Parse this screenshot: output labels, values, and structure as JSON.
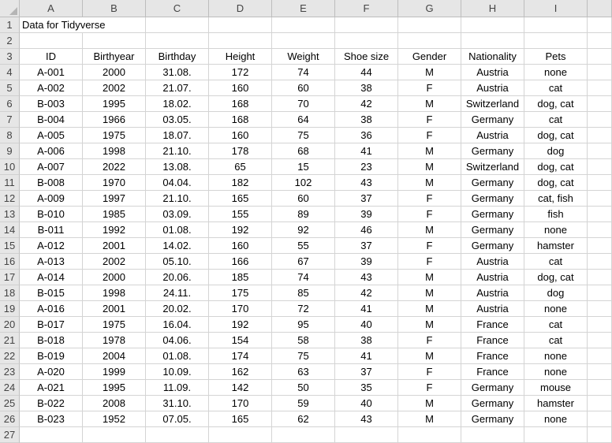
{
  "columns": [
    "A",
    "B",
    "C",
    "D",
    "E",
    "F",
    "G",
    "H",
    "I"
  ],
  "title_cell": "Data for Tidyverse",
  "headers": [
    "ID",
    "Birthyear",
    "Birthday",
    "Height",
    "Weight",
    "Shoe size",
    "Gender",
    "Nationality",
    "Pets"
  ],
  "rows": [
    [
      "A-001",
      "2000",
      "31.08.",
      "172",
      "74",
      "44",
      "M",
      "Austria",
      "none"
    ],
    [
      "A-002",
      "2002",
      "21.07.",
      "160",
      "60",
      "38",
      "F",
      "Austria",
      "cat"
    ],
    [
      "B-003",
      "1995",
      "18.02.",
      "168",
      "70",
      "42",
      "M",
      "Switzerland",
      "dog, cat"
    ],
    [
      "B-004",
      "1966",
      "03.05.",
      "168",
      "64",
      "38",
      "F",
      "Germany",
      "cat"
    ],
    [
      "A-005",
      "1975",
      "18.07.",
      "160",
      "75",
      "36",
      "F",
      "Austria",
      "dog, cat"
    ],
    [
      "A-006",
      "1998",
      "21.10.",
      "178",
      "68",
      "41",
      "M",
      "Germany",
      "dog"
    ],
    [
      "A-007",
      "2022",
      "13.08.",
      "65",
      "15",
      "23",
      "M",
      "Switzerland",
      "dog, cat"
    ],
    [
      "B-008",
      "1970",
      "04.04.",
      "182",
      "102",
      "43",
      "M",
      "Germany",
      "dog, cat"
    ],
    [
      "A-009",
      "1997",
      "21.10.",
      "165",
      "60",
      "37",
      "F",
      "Germany",
      "cat, fish"
    ],
    [
      "B-010",
      "1985",
      "03.09.",
      "155",
      "89",
      "39",
      "F",
      "Germany",
      "fish"
    ],
    [
      "B-011",
      "1992",
      "01.08.",
      "192",
      "92",
      "46",
      "M",
      "Germany",
      "none"
    ],
    [
      "A-012",
      "2001",
      "14.02.",
      "160",
      "55",
      "37",
      "F",
      "Germany",
      "hamster"
    ],
    [
      "A-013",
      "2002",
      "05.10.",
      "166",
      "67",
      "39",
      "F",
      "Austria",
      "cat"
    ],
    [
      "A-014",
      "2000",
      "20.06.",
      "185",
      "74",
      "43",
      "M",
      "Austria",
      "dog, cat"
    ],
    [
      "B-015",
      "1998",
      "24.11.",
      "175",
      "85",
      "42",
      "M",
      "Austria",
      "dog"
    ],
    [
      "A-016",
      "2001",
      "20.02.",
      "170",
      "72",
      "41",
      "M",
      "Austria",
      "none"
    ],
    [
      "B-017",
      "1975",
      "16.04.",
      "192",
      "95",
      "40",
      "M",
      "France",
      "cat"
    ],
    [
      "B-018",
      "1978",
      "04.06.",
      "154",
      "58",
      "38",
      "F",
      "France",
      "cat"
    ],
    [
      "B-019",
      "2004",
      "01.08.",
      "174",
      "75",
      "41",
      "M",
      "France",
      "none"
    ],
    [
      "A-020",
      "1999",
      "10.09.",
      "162",
      "63",
      "37",
      "F",
      "France",
      "none"
    ],
    [
      "A-021",
      "1995",
      "11.09.",
      "142",
      "50",
      "35",
      "F",
      "Germany",
      "mouse"
    ],
    [
      "B-022",
      "2008",
      "31.10.",
      "170",
      "59",
      "40",
      "M",
      "Germany",
      "hamster"
    ],
    [
      "B-023",
      "1952",
      "07.05.",
      "165",
      "62",
      "43",
      "M",
      "Germany",
      "none"
    ]
  ],
  "row_numbers": [
    "1",
    "2",
    "3",
    "4",
    "5",
    "6",
    "7",
    "8",
    "9",
    "10",
    "11",
    "12",
    "13",
    "14",
    "15",
    "16",
    "17",
    "18",
    "19",
    "20",
    "21",
    "22",
    "23",
    "24",
    "25",
    "26",
    "27"
  ]
}
